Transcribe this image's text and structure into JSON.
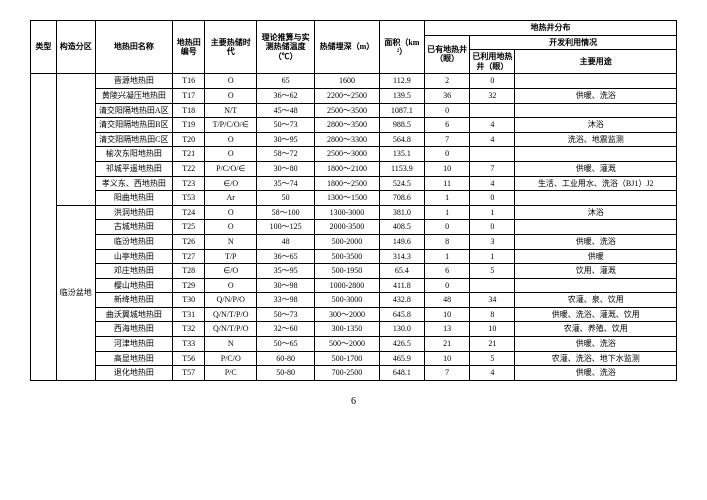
{
  "page_number": "6",
  "headers": {
    "type": "类型",
    "zone": "构造分区",
    "name": "地热田名称",
    "code": "地热田编号",
    "era": "主要热储时代",
    "temp": "理论推算与实测热储温度（℃）",
    "depth": "热储埋深（m）",
    "area": "面积（km²）",
    "dist": "地热井分布",
    "existing": "已有地热井（眼）",
    "dev": "开发利用情况",
    "used": "已利用地热井（眼）",
    "purpose": "主要用途"
  },
  "rows": [
    {
      "name": "晋源地热田",
      "code": "T16",
      "era": "O",
      "temp": "65",
      "depth": "1600",
      "area": "112.9",
      "existing": "2",
      "used": "0",
      "purpose": ""
    },
    {
      "name": "黄陵兴凝压地热田",
      "code": "T17",
      "era": "O",
      "temp": "36～62",
      "depth": "2200～2500",
      "area": "139.5",
      "existing": "36",
      "used": "32",
      "purpose": "供暖、洗浴"
    },
    {
      "name": "清交阳隔地热田A区",
      "code": "T18",
      "era": "N/T",
      "temp": "45～48",
      "depth": "2500～3500",
      "area": "1087.1",
      "existing": "0",
      "used": "",
      "purpose": ""
    },
    {
      "name": "清交阳隔地热田B区",
      "code": "T19",
      "era": "T/P/C/O/∈",
      "temp": "50～73",
      "depth": "2800～3500",
      "area": "988.5",
      "existing": "6",
      "used": "4",
      "purpose": "沐浴"
    },
    {
      "name": "清交阳隔地热田C区",
      "code": "T20",
      "era": "O",
      "temp": "30～95",
      "depth": "2800～3300",
      "area": "564.8",
      "existing": "7",
      "used": "4",
      "purpose": "洗浴、地震监测"
    },
    {
      "name": "榆次东阳地热田",
      "code": "T21",
      "era": "O",
      "temp": "58～72",
      "depth": "2500～3000",
      "area": "135.1",
      "existing": "0",
      "used": "",
      "purpose": ""
    },
    {
      "name": "祁城平遥地热田",
      "code": "T22",
      "era": "P/C/O/∈",
      "temp": "30～80",
      "depth": "1800～2100",
      "area": "1153.9",
      "existing": "10",
      "used": "7",
      "purpose": "供暖、灌溉"
    },
    {
      "name": "孝义东、西地热田",
      "code": "T23",
      "era": "∈/O",
      "temp": "35～74",
      "depth": "1800～2500",
      "area": "524.5",
      "existing": "11",
      "used": "4",
      "purpose": "生活、工业用水、洗浴（BJ1）J2"
    },
    {
      "name": "阳曲地热田",
      "code": "T53",
      "era": "Ar",
      "temp": "50",
      "depth": "1300～1500",
      "area": "708.6",
      "existing": "1",
      "used": "0",
      "purpose": ""
    },
    {
      "name": "洪洞地热田",
      "code": "T24",
      "era": "O",
      "temp": "58～100",
      "depth": "1300-3000",
      "area": "381.0",
      "existing": "1",
      "used": "1",
      "purpose": "沐浴"
    },
    {
      "name": "古城地热田",
      "code": "T25",
      "era": "O",
      "temp": "100～125",
      "depth": "2000-3500",
      "area": "408.5",
      "existing": "0",
      "used": "0",
      "purpose": ""
    },
    {
      "name": "临汾地热田",
      "code": "T26",
      "era": "N",
      "temp": "48",
      "depth": "500-2000",
      "area": "149.6",
      "existing": "8",
      "used": "3",
      "purpose": "供暖、洗浴"
    },
    {
      "name": "山亭地热田",
      "code": "T27",
      "era": "T/P",
      "temp": "36～65",
      "depth": "500-3500",
      "area": "314.3",
      "existing": "1",
      "used": "1",
      "purpose": "供暖"
    },
    {
      "name": "邓庄地热田",
      "code": "T28",
      "era": "∈/O",
      "temp": "35～95",
      "depth": "500-1950",
      "area": "65.4",
      "existing": "6",
      "used": "5",
      "purpose": "饮用、灌溉"
    },
    {
      "name": "樱山地热田",
      "code": "T29",
      "era": "O",
      "temp": "30～98",
      "depth": "1000-2800",
      "area": "411.8",
      "existing": "0",
      "used": "",
      "purpose": ""
    },
    {
      "name": "新绛地热田",
      "code": "T30",
      "era": "Q/N/P/O",
      "temp": "33～98",
      "depth": "500-3000",
      "area": "432.8",
      "existing": "48",
      "used": "34",
      "purpose": "农灌、泉、饮用"
    },
    {
      "name": "曲沃翼城地热田",
      "code": "T31",
      "era": "Q/N/T/P/O",
      "temp": "50～73",
      "depth": "300～2000",
      "area": "645.8",
      "existing": "10",
      "used": "8",
      "purpose": "供暖、洗浴、灌溉、饮用"
    },
    {
      "name": "西海地热田",
      "code": "T32",
      "era": "Q/N/T/P/O",
      "temp": "32～60",
      "depth": "300-1350",
      "area": "130.0",
      "existing": "13",
      "used": "10",
      "purpose": "农灌、养殖、饮用"
    },
    {
      "name": "河津地热田",
      "code": "T33",
      "era": "N",
      "temp": "50～65",
      "depth": "500～2000",
      "area": "426.5",
      "existing": "21",
      "used": "21",
      "purpose": "供暖、洗浴"
    },
    {
      "name": "高显地热田",
      "code": "T56",
      "era": "P/C/O",
      "temp": "60-80",
      "depth": "500-1700",
      "area": "465.9",
      "existing": "10",
      "used": "5",
      "purpose": "农灌、洗浴、地下水监测"
    },
    {
      "name": "退化地热田",
      "code": "T57",
      "era": "P/C",
      "temp": "50-80",
      "depth": "700-2500",
      "area": "648.1",
      "existing": "7",
      "used": "4",
      "purpose": "供暖、洗浴"
    }
  ],
  "zone_label": "临汾盆地"
}
